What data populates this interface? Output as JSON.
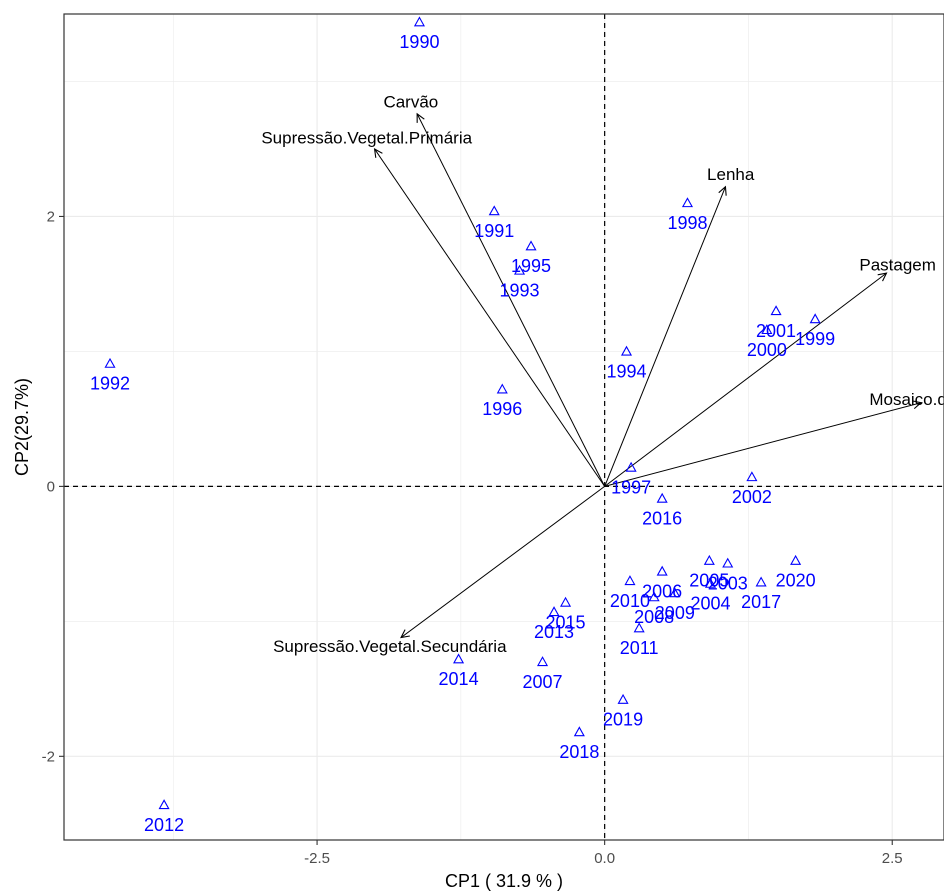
{
  "chart_data": {
    "type": "scatter",
    "xlabel": "CP1 ( 31.9 % )",
    "ylabel": "CP2(29.7%)",
    "xlim": [
      -4.7,
      2.95
    ],
    "ylim": [
      -2.62,
      3.5
    ],
    "x_ticks": [
      -2.5,
      0.0,
      2.5
    ],
    "x_tick_labels": [
      "-2.5",
      "0.0",
      "2.5"
    ],
    "y_ticks": [
      -2,
      0,
      2
    ],
    "y_tick_labels": [
      "-2",
      "0",
      "2"
    ],
    "grid": true,
    "reference_lines": {
      "x": 0,
      "y": 0,
      "style": "dashed"
    },
    "colors": {
      "points": "#0000ff",
      "arrows": "#000000",
      "grid": "#ebebeb",
      "border": "#333333"
    },
    "points": [
      {
        "label": "1990",
        "x": -1.61,
        "y": 3.44
      },
      {
        "label": "1991",
        "x": -0.96,
        "y": 2.04
      },
      {
        "label": "1992",
        "x": -4.3,
        "y": 0.91
      },
      {
        "label": "1993",
        "x": -0.74,
        "y": 1.6
      },
      {
        "label": "1994",
        "x": 0.19,
        "y": 1.0
      },
      {
        "label": "1995",
        "x": -0.64,
        "y": 1.78
      },
      {
        "label": "1996",
        "x": -0.89,
        "y": 0.72
      },
      {
        "label": "1997",
        "x": 0.23,
        "y": 0.14
      },
      {
        "label": "1998",
        "x": 0.72,
        "y": 2.1
      },
      {
        "label": "1999",
        "x": 1.83,
        "y": 1.24
      },
      {
        "label": "2000",
        "x": 1.41,
        "y": 1.16
      },
      {
        "label": "2001",
        "x": 1.49,
        "y": 1.3
      },
      {
        "label": "2002",
        "x": 1.28,
        "y": 0.07
      },
      {
        "label": "2003",
        "x": 1.07,
        "y": -0.57
      },
      {
        "label": "2004",
        "x": 0.92,
        "y": -0.72
      },
      {
        "label": "2005",
        "x": 0.91,
        "y": -0.55
      },
      {
        "label": "2006",
        "x": 0.5,
        "y": -0.63
      },
      {
        "label": "2007",
        "x": -0.54,
        "y": -1.3
      },
      {
        "label": "2008",
        "x": 0.43,
        "y": -0.82
      },
      {
        "label": "2009",
        "x": 0.61,
        "y": -0.79
      },
      {
        "label": "2010",
        "x": 0.22,
        "y": -0.7
      },
      {
        "label": "2011",
        "x": 0.3,
        "y": -1.05
      },
      {
        "label": "2012",
        "x": -3.83,
        "y": -2.36
      },
      {
        "label": "2013",
        "x": -0.44,
        "y": -0.93
      },
      {
        "label": "2014",
        "x": -1.27,
        "y": -1.28
      },
      {
        "label": "2015",
        "x": -0.34,
        "y": -0.86
      },
      {
        "label": "2016",
        "x": 0.5,
        "y": -0.09
      },
      {
        "label": "2017",
        "x": 1.36,
        "y": -0.71
      },
      {
        "label": "2018",
        "x": -0.22,
        "y": -1.82
      },
      {
        "label": "2019",
        "x": 0.16,
        "y": -1.58
      },
      {
        "label": "2020",
        "x": 1.66,
        "y": -0.55
      }
    ],
    "loadings": [
      {
        "label": "Carvão",
        "x": -1.63,
        "y": 2.76
      },
      {
        "label": "Supressão.Vegetal.Primária",
        "x": -2.0,
        "y": 2.5
      },
      {
        "label": "Lenha",
        "x": 1.05,
        "y": 2.22
      },
      {
        "label": "Pastagem",
        "x": 2.45,
        "y": 1.58
      },
      {
        "label": "Mosaico.de.Usos",
        "x": 2.75,
        "y": 0.62
      },
      {
        "label": "Supressão.Vegetal.Secundária",
        "x": -1.77,
        "y": -1.12
      }
    ]
  }
}
